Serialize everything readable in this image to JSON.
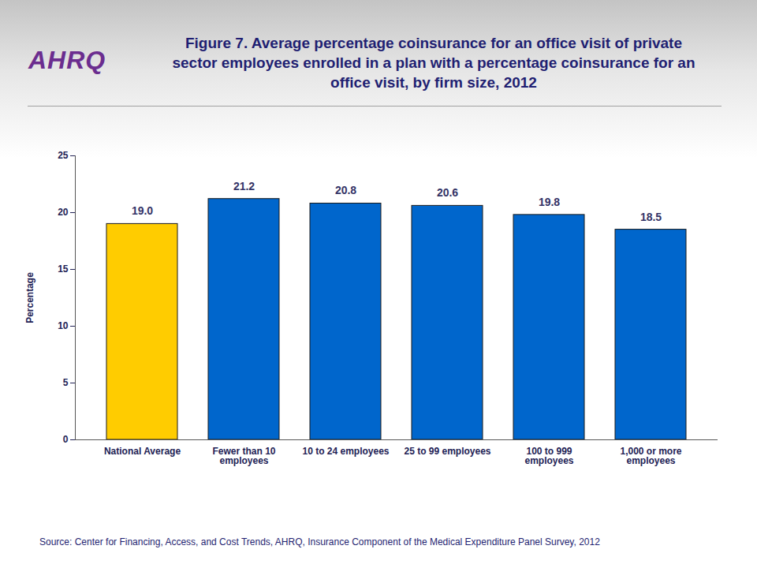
{
  "chart_data": {
    "type": "bar",
    "title": "Figure 7. Average percentage coinsurance for an office visit of private sector employees enrolled in a plan with a percentage coinsurance for an office visit, by firm size, 2012",
    "logo": "AHRQ",
    "source": "Source: Center for Financing, Access, and Cost Trends, AHRQ, Insurance Component of the Medical Expenditure Panel Survey, 2012",
    "ylabel": "Percentage",
    "categories": [
      "National Average",
      "Fewer than 10 employees",
      "10 to 24 employees",
      "25 to 99 employees",
      "100 to 999 employees",
      "1,000 or more employees"
    ],
    "values": [
      19.0,
      21.2,
      20.8,
      20.6,
      19.8,
      18.5
    ],
    "value_labels": [
      "19.0",
      "21.2",
      "20.8",
      "20.6",
      "19.8",
      "18.5"
    ],
    "colors": [
      "#ffcc00",
      "#0066cc",
      "#0066cc",
      "#0066cc",
      "#0066cc",
      "#0066cc"
    ],
    "ylim": [
      0,
      25
    ],
    "yticks": [
      0,
      5,
      10,
      15,
      20,
      25
    ],
    "data_labels": true,
    "grid": false
  }
}
